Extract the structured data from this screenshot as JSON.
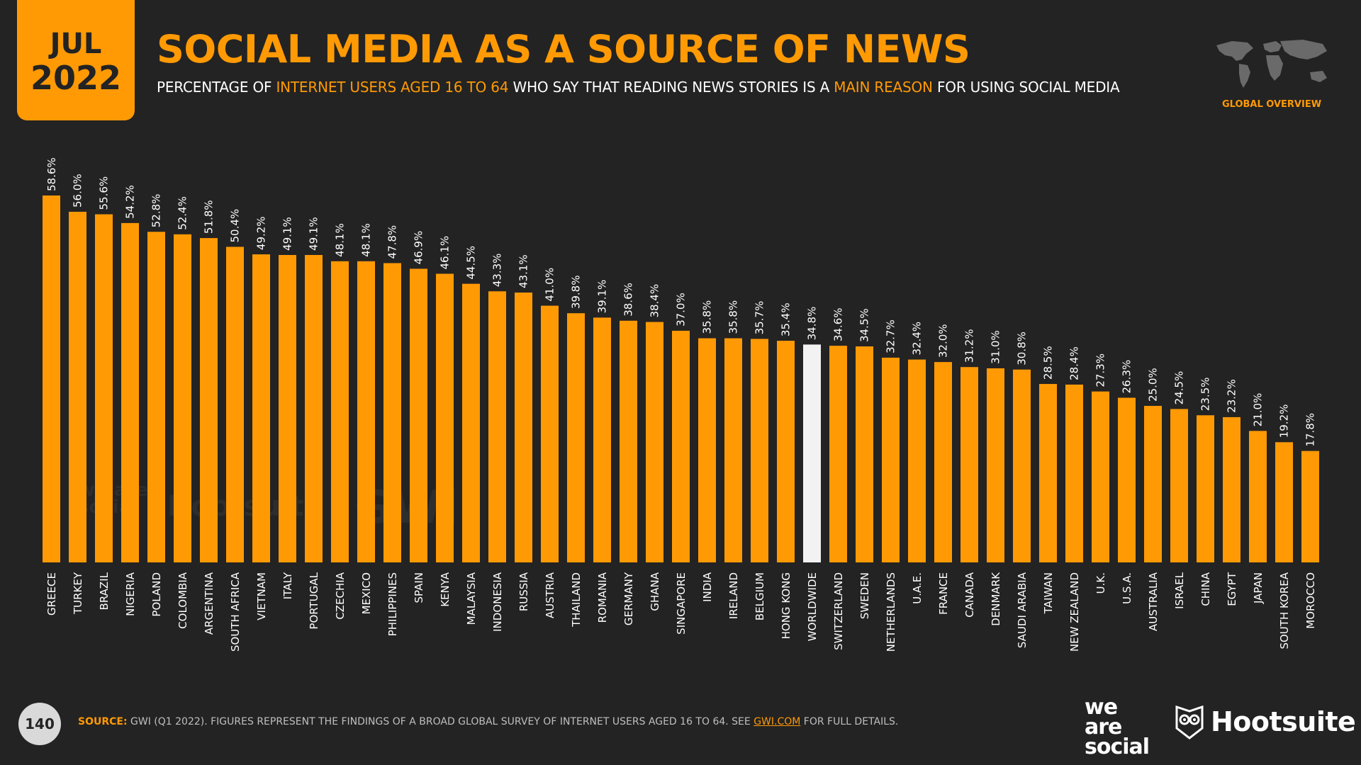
{
  "header": {
    "month": "JUL",
    "year": "2022",
    "title": "SOCIAL MEDIA AS A SOURCE OF NEWS",
    "subtitle_parts": {
      "p1": "PERCENTAGE OF ",
      "p2": "INTERNET USERS AGED 16 TO 64",
      "p3": " WHO SAY THAT READING NEWS STORIES IS A ",
      "p4": "MAIN REASON",
      "p5": " FOR USING SOCIAL MEDIA"
    },
    "region": "GLOBAL OVERVIEW",
    "map_icon": "world-map-icon"
  },
  "colors": {
    "accent": "#ff9a05",
    "background": "#232323",
    "highlight_bar": "#f2f2f2",
    "text": "#ffffff"
  },
  "chart_data": {
    "type": "bar",
    "title": "SOCIAL MEDIA AS A SOURCE OF NEWS",
    "xlabel": "",
    "ylabel": "",
    "ylim": [
      0,
      60
    ],
    "grid": false,
    "value_suffix": "%",
    "highlight_category": "WORLDWIDE",
    "categories": [
      "GREECE",
      "TURKEY",
      "BRAZIL",
      "NIGERIA",
      "POLAND",
      "COLOMBIA",
      "ARGENTINA",
      "SOUTH AFRICA",
      "VIETNAM",
      "ITALY",
      "PORTUGAL",
      "CZECHIA",
      "MEXICO",
      "PHILIPPINES",
      "SPAIN",
      "KENYA",
      "MALAYSIA",
      "INDONESIA",
      "RUSSIA",
      "AUSTRIA",
      "THAILAND",
      "ROMANIA",
      "GERMANY",
      "GHANA",
      "SINGAPORE",
      "INDIA",
      "IRELAND",
      "BELGIUM",
      "HONG KONG",
      "WORLDWIDE",
      "SWITZERLAND",
      "SWEDEN",
      "NETHERLANDS",
      "U.A.E.",
      "FRANCE",
      "CANADA",
      "DENMARK",
      "SAUDI ARABIA",
      "TAIWAN",
      "NEW ZEALAND",
      "U.K.",
      "U.S.A.",
      "AUSTRALIA",
      "ISRAEL",
      "CHINA",
      "EGYPT",
      "JAPAN",
      "SOUTH KOREA",
      "MOROCCO"
    ],
    "values": [
      58.6,
      56.0,
      55.6,
      54.2,
      52.8,
      52.4,
      51.8,
      50.4,
      49.2,
      49.1,
      49.1,
      48.1,
      48.1,
      47.8,
      46.9,
      46.1,
      44.5,
      43.3,
      43.1,
      41.0,
      39.8,
      39.1,
      38.6,
      38.4,
      37.0,
      35.8,
      35.8,
      35.7,
      35.4,
      34.8,
      34.6,
      34.5,
      32.7,
      32.4,
      32.0,
      31.2,
      31.0,
      30.8,
      28.5,
      28.4,
      27.3,
      26.3,
      25.0,
      24.5,
      23.5,
      23.2,
      21.0,
      19.2,
      17.8
    ],
    "labels": [
      "58.6%",
      "56.0%",
      "55.6%",
      "54.2%",
      "52.8%",
      "52.4%",
      "51.8%",
      "50.4%",
      "49.2%",
      "49.1%",
      "49.1%",
      "48.1%",
      "48.1%",
      "47.8%",
      "46.9%",
      "46.1%",
      "44.5%",
      "43.3%",
      "43.1%",
      "41.0%",
      "39.8%",
      "39.1%",
      "38.6%",
      "38.4%",
      "37.0%",
      "35.8%",
      "35.8%",
      "35.7%",
      "35.4%",
      "34.8%",
      "34.6%",
      "34.5%",
      "32.7%",
      "32.4%",
      "32.0%",
      "31.2%",
      "31.0%",
      "30.8%",
      "28.5%",
      "28.4%",
      "27.3%",
      "26.3%",
      "25.0%",
      "24.5%",
      "23.5%",
      "23.2%",
      "21.0%",
      "19.2%",
      "17.8%"
    ]
  },
  "watermark": {
    "we_are_social": "we are social",
    "hootsuite": "Hootsuite",
    "gwi": "GWI."
  },
  "footer": {
    "page_number": "140",
    "source_label": "SOURCE:",
    "source_text": " GWI (Q1 2022). FIGURES REPRESENT THE FINDINGS OF A BROAD GLOBAL SURVEY OF INTERNET USERS AGED 16 TO 64. SEE ",
    "source_link": "GWI.COM",
    "source_tail": " FOR FULL DETAILS.",
    "logo_we": "we",
    "logo_are": "are",
    "logo_social": "social",
    "logo_hootsuite": "Hootsuite",
    "owl_icon": "hootsuite-owl-icon"
  }
}
